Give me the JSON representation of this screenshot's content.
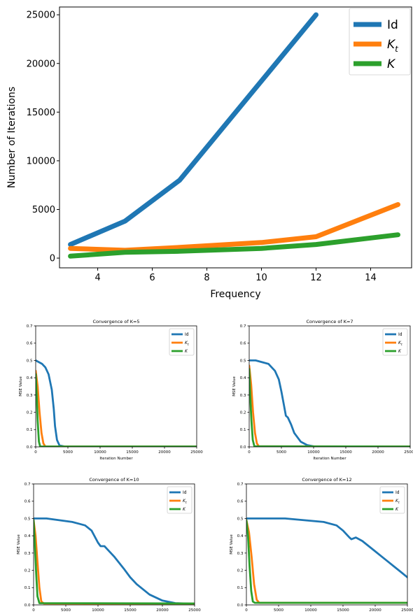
{
  "colors": {
    "Id": "#1f77b4",
    "K_t": "#ff7f0e",
    "K": "#2ca02c"
  },
  "chart_data": [
    {
      "type": "line",
      "title": "",
      "xlabel": "Frequency",
      "ylabel": "Number of Iterations",
      "xlim": [
        2.6,
        15.5
      ],
      "ylim": [
        -1000,
        25800
      ],
      "xticks": [
        4,
        6,
        8,
        10,
        12,
        14
      ],
      "yticks": [
        0,
        5000,
        10000,
        15000,
        20000,
        25000
      ],
      "legend": "top-right",
      "series": [
        {
          "name": "Id",
          "key": "Id",
          "x": [
            3,
            5,
            7,
            12
          ],
          "y": [
            1400,
            3800,
            8000,
            25000
          ]
        },
        {
          "name": "K_t",
          "key": "K_t",
          "x": [
            3,
            5,
            7,
            10,
            12,
            15
          ],
          "y": [
            1000,
            800,
            1100,
            1600,
            2200,
            5500
          ]
        },
        {
          "name": "K",
          "key": "K",
          "x": [
            3,
            5,
            7,
            10,
            12,
            15
          ],
          "y": [
            200,
            600,
            700,
            1000,
            1400,
            2400
          ]
        }
      ]
    },
    {
      "type": "line",
      "title": "Convergence of K=5",
      "xlabel": "Iteration Number",
      "ylabel": "MSE Value",
      "xlim": [
        0,
        25000
      ],
      "ylim": [
        0,
        0.7
      ],
      "xticks": [
        0,
        5000,
        10000,
        15000,
        20000,
        25000
      ],
      "yticks": [
        0.0,
        0.1,
        0.2,
        0.3,
        0.4,
        0.5,
        0.6,
        0.7
      ],
      "legend": "top-right",
      "series": [
        {
          "name": "Id",
          "key": "Id",
          "x": [
            0,
            500,
            1000,
            1500,
            2000,
            2500,
            2800,
            3000,
            3300,
            3700,
            4500,
            25000
          ],
          "y": [
            0.5,
            0.49,
            0.48,
            0.46,
            0.42,
            0.33,
            0.22,
            0.12,
            0.04,
            0.008,
            0.002,
            0.002
          ]
        },
        {
          "name": "K_t",
          "key": "K_t",
          "x": [
            0,
            300,
            600,
            900,
            1200,
            1500,
            25000
          ],
          "y": [
            0.44,
            0.35,
            0.2,
            0.08,
            0.02,
            0.002,
            0.002
          ]
        },
        {
          "name": "K",
          "key": "K",
          "x": [
            0,
            150,
            300,
            500,
            700,
            25000
          ],
          "y": [
            0.42,
            0.3,
            0.15,
            0.03,
            0.002,
            0.002
          ]
        }
      ]
    },
    {
      "type": "line",
      "title": "Convergence of K=7",
      "xlabel": "Iteration Number",
      "ylabel": "MSE Value",
      "xlim": [
        0,
        25000
      ],
      "ylim": [
        0,
        0.7
      ],
      "xticks": [
        0,
        5000,
        10000,
        15000,
        20000,
        25000
      ],
      "yticks": [
        0.0,
        0.1,
        0.2,
        0.3,
        0.4,
        0.5,
        0.6,
        0.7
      ],
      "legend": "top-right",
      "series": [
        {
          "name": "Id",
          "key": "Id",
          "x": [
            0,
            1000,
            2000,
            3000,
            4000,
            4600,
            5000,
            5400,
            5700,
            6000,
            6500,
            7000,
            8000,
            9000,
            10000,
            25000
          ],
          "y": [
            0.5,
            0.5,
            0.49,
            0.48,
            0.44,
            0.39,
            0.32,
            0.24,
            0.18,
            0.17,
            0.13,
            0.08,
            0.03,
            0.01,
            0.003,
            0.002
          ]
        },
        {
          "name": "K_t",
          "key": "K_t",
          "x": [
            0,
            300,
            600,
            900,
            1200,
            1500,
            25000
          ],
          "y": [
            0.47,
            0.36,
            0.2,
            0.08,
            0.02,
            0.003,
            0.002
          ]
        },
        {
          "name": "K",
          "key": "K",
          "x": [
            0,
            150,
            350,
            550,
            800,
            25000
          ],
          "y": [
            0.45,
            0.3,
            0.15,
            0.04,
            0.003,
            0.002
          ]
        }
      ]
    },
    {
      "type": "line",
      "title": "Convergence of K=10",
      "xlabel": "",
      "ylabel": "MSE Value",
      "xlim": [
        0,
        25000
      ],
      "ylim": [
        0,
        0.7
      ],
      "xticks": [
        0,
        5000,
        10000,
        15000,
        20000,
        25000
      ],
      "yticks": [
        0.0,
        0.1,
        0.2,
        0.3,
        0.4,
        0.5,
        0.6,
        0.7
      ],
      "legend": "top-right",
      "series": [
        {
          "name": "Id",
          "key": "Id",
          "x": [
            0,
            2000,
            4000,
            6000,
            7000,
            8000,
            9000,
            10000,
            10400,
            11000,
            11500,
            12500,
            14000,
            15000,
            16000,
            18000,
            20000,
            22000,
            24500
          ],
          "y": [
            0.5,
            0.5,
            0.49,
            0.48,
            0.47,
            0.46,
            0.43,
            0.36,
            0.34,
            0.34,
            0.32,
            0.28,
            0.21,
            0.16,
            0.12,
            0.06,
            0.025,
            0.01,
            0.007
          ]
        },
        {
          "name": "K_t",
          "key": "K_t",
          "x": [
            0,
            300,
            600,
            900,
            1200,
            1600,
            25000
          ],
          "y": [
            0.49,
            0.4,
            0.25,
            0.1,
            0.02,
            0.008,
            0.007
          ]
        },
        {
          "name": "K",
          "key": "K",
          "x": [
            0,
            200,
            400,
            600,
            900,
            25000
          ],
          "y": [
            0.49,
            0.35,
            0.18,
            0.05,
            0.01,
            0.008
          ]
        }
      ]
    },
    {
      "type": "line",
      "title": "Convergence of K=12",
      "xlabel": "",
      "ylabel": "MSE Value",
      "xlim": [
        0,
        25000
      ],
      "ylim": [
        0,
        0.7
      ],
      "xticks": [
        0,
        5000,
        10000,
        15000,
        20000,
        25000
      ],
      "yticks": [
        0.0,
        0.1,
        0.2,
        0.3,
        0.4,
        0.5,
        0.6,
        0.7
      ],
      "legend": "top-right",
      "series": [
        {
          "name": "Id",
          "key": "Id",
          "x": [
            0,
            3000,
            6000,
            9000,
            12000,
            14000,
            15000,
            16000,
            16300,
            17000,
            18000,
            19000,
            20000,
            21000,
            22000,
            23000,
            24000,
            25000
          ],
          "y": [
            0.5,
            0.5,
            0.5,
            0.49,
            0.48,
            0.46,
            0.43,
            0.39,
            0.38,
            0.39,
            0.37,
            0.34,
            0.31,
            0.28,
            0.25,
            0.22,
            0.19,
            0.16
          ]
        },
        {
          "name": "K_t",
          "key": "K_t",
          "x": [
            0,
            400,
            800,
            1200,
            1600,
            2000,
            25000
          ],
          "y": [
            0.49,
            0.42,
            0.28,
            0.12,
            0.03,
            0.012,
            0.012
          ]
        },
        {
          "name": "K",
          "key": "K",
          "x": [
            0,
            250,
            500,
            750,
            1000,
            1300,
            25000
          ],
          "y": [
            0.49,
            0.4,
            0.22,
            0.08,
            0.02,
            0.012,
            0.012
          ]
        }
      ]
    }
  ]
}
